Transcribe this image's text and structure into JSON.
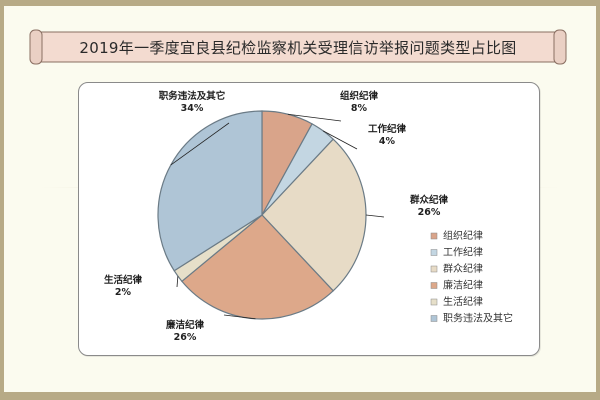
{
  "chart_data": {
    "type": "pie",
    "title": "2019年一季度宜良县纪检监察机关受理信访举报问题类型占比图",
    "slices": [
      {
        "name": "组织纪律",
        "percent": 8,
        "label_pct": "8%",
        "color": "#d9a48a"
      },
      {
        "name": "工作纪律",
        "percent": 4,
        "label_pct": "4%",
        "color": "#c3d6e2"
      },
      {
        "name": "群众纪律",
        "percent": 26,
        "label_pct": "26%",
        "color": "#e7dbc6"
      },
      {
        "name": "廉洁纪律",
        "percent": 26,
        "label_pct": "26%",
        "color": "#dda88a"
      },
      {
        "name": "生活纪律",
        "percent": 2,
        "label_pct": "2%",
        "color": "#e6dfc9"
      },
      {
        "name": "职务违法及其它",
        "percent": 34,
        "label_pct": "34%",
        "color": "#afc5d6"
      }
    ],
    "legend_position": "right"
  }
}
